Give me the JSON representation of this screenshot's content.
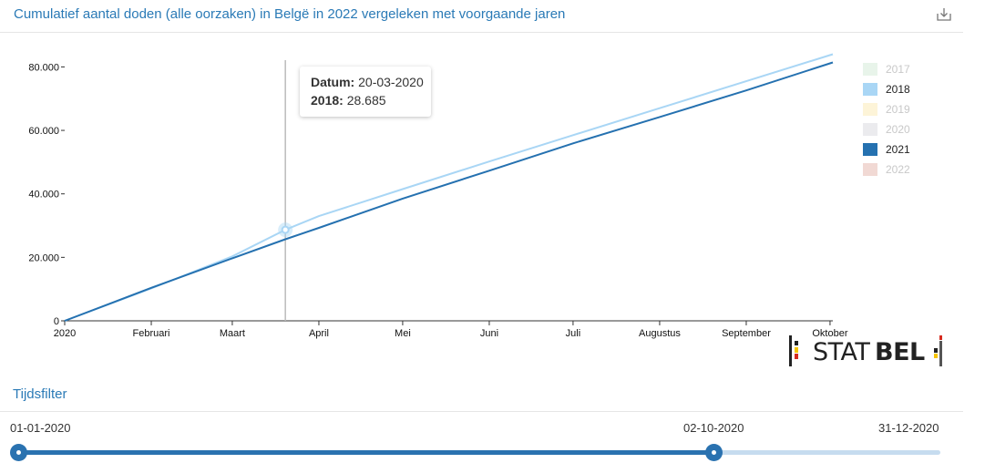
{
  "header": {
    "title": "Cumulatief aantal doden (alle oorzaken) in Belgë in 2022 vergeleken met voorgaande jaren",
    "download_icon": "download-icon"
  },
  "tooltip": {
    "date_label": "Datum:",
    "date_value": "20-03-2020",
    "series_label": "2018:",
    "series_value": "28.685"
  },
  "filter": {
    "title": "Tijdsfilter",
    "start_label": "01-01-2020",
    "current_label": "02-10-2020",
    "end_label": "31-12-2020",
    "selected_fraction": 0.754
  },
  "logo": {
    "text_light": "STAT",
    "text_bold": "BEL"
  },
  "chart_data": {
    "type": "line",
    "title": "Cumulatief aantal doden (alle oorzaken) in Belgë in 2022 vergeleken met voorgaande jaren",
    "xlabel": "",
    "ylabel": "",
    "x_ticks": [
      "2020",
      "Februari",
      "Maart",
      "April",
      "Mei",
      "Juni",
      "Juli",
      "Augustus",
      "September",
      "Oktober"
    ],
    "y_ticks": [
      "0",
      "20.000",
      "40.000",
      "60.000",
      "80.000"
    ],
    "y_tick_values": [
      0,
      20000,
      40000,
      60000,
      80000
    ],
    "ylim": [
      0,
      85000
    ],
    "xlim": [
      "2020-01-01",
      "2020-10-02"
    ],
    "grid": false,
    "legend_position": "right",
    "crosshair_date": "2020-03-20",
    "highlight_point": {
      "x": "2020-03-20",
      "y": 28685,
      "series": "2018"
    },
    "legend": [
      {
        "name": "2017",
        "color": "#e8f4ea",
        "active": false
      },
      {
        "name": "2018",
        "color": "#a9d6f5",
        "active": true
      },
      {
        "name": "2019",
        "color": "#fdf4d8",
        "active": false
      },
      {
        "name": "2020",
        "color": "#ebebee",
        "active": false
      },
      {
        "name": "2021",
        "color": "#2571b0",
        "active": true
      },
      {
        "name": "2022",
        "color": "#f1d9d4",
        "active": false
      }
    ],
    "series": [
      {
        "name": "2018",
        "color": "#a9d6f5",
        "x": [
          "2020-01-01",
          "2020-02-01",
          "2020-03-01",
          "2020-03-20",
          "2020-04-01",
          "2020-05-01",
          "2020-06-01",
          "2020-07-01",
          "2020-08-01",
          "2020-09-01",
          "2020-10-02"
        ],
        "values": [
          0,
          10200,
          20300,
          28685,
          33000,
          41500,
          50200,
          58500,
          67000,
          75500,
          84000
        ]
      },
      {
        "name": "2021",
        "color": "#2571b0",
        "x": [
          "2020-01-01",
          "2020-02-01",
          "2020-03-01",
          "2020-03-20",
          "2020-04-01",
          "2020-05-01",
          "2020-06-01",
          "2020-07-01",
          "2020-08-01",
          "2020-09-01",
          "2020-10-02"
        ],
        "values": [
          0,
          10400,
          19700,
          25700,
          29300,
          38500,
          47300,
          55900,
          64200,
          72600,
          81400
        ]
      }
    ]
  }
}
